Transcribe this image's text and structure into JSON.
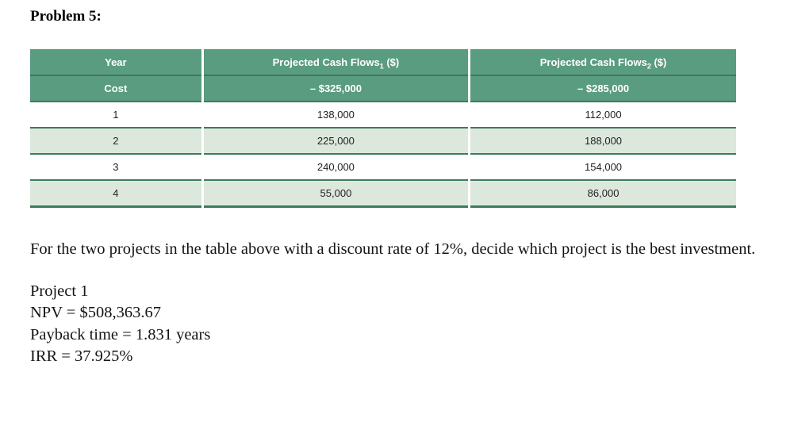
{
  "page": {
    "title": "Problem 5:"
  },
  "colors": {
    "header_green": "#5a9c80",
    "stripe_light_green": "#dde8dd",
    "border_dark_green": "#3d7a5f"
  },
  "table": {
    "header": {
      "year": "Year",
      "cf1_label": "Projected Cash Flows",
      "cf1_sub": "1",
      "cf1_suffix": " ($)",
      "cf2_label": "Projected Cash Flows",
      "cf2_sub": "2",
      "cf2_suffix": " ($)"
    },
    "cost_row": {
      "label": "Cost",
      "cf1": "– $325,000",
      "cf2": "– $285,000"
    },
    "rows": [
      {
        "year": "1",
        "cf1": "138,000",
        "cf2": "112,000"
      },
      {
        "year": "2",
        "cf1": "225,000",
        "cf2": "188,000"
      },
      {
        "year": "3",
        "cf1": "240,000",
        "cf2": "154,000"
      },
      {
        "year": "4",
        "cf1": "55,000",
        "cf2": "86,000"
      }
    ]
  },
  "question": {
    "text": "For the two projects in the table above with a discount rate of 12%, decide which project is the best investment."
  },
  "solution": {
    "project_label": "Project 1",
    "npv": "NPV = $508,363.67",
    "payback": "Payback time = 1.831 years",
    "irr": "IRR = 37.925%"
  }
}
